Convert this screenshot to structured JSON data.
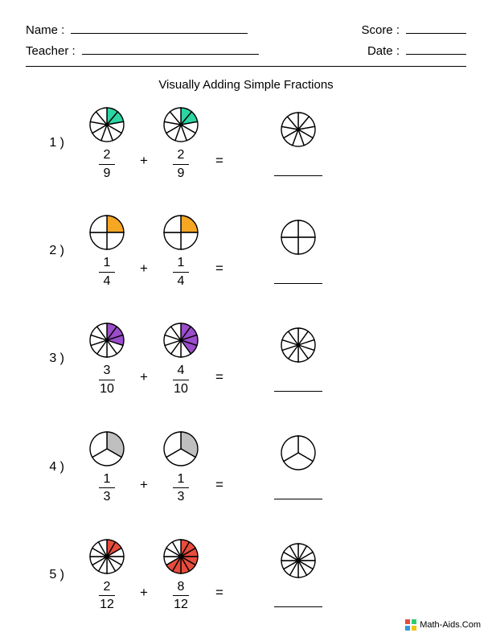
{
  "header": {
    "name_label": "Name :",
    "teacher_label": "Teacher :",
    "score_label": "Score :",
    "date_label": "Date :"
  },
  "title": "Visually Adding Simple Fractions",
  "operator": "+",
  "equals": "=",
  "pie_style": {
    "radius": 21,
    "stroke": "#000000",
    "stroke_width": 1.4,
    "empty_fill": "#ffffff"
  },
  "problems": [
    {
      "num": "1 )",
      "denom": 9,
      "left": {
        "numerator": "2",
        "denominator": "9",
        "filled": 2,
        "fill_color": "#2cd6a4"
      },
      "right": {
        "numerator": "2",
        "denominator": "9",
        "filled": 2,
        "fill_color": "#2cd6a4"
      }
    },
    {
      "num": "2 )",
      "denom": 4,
      "left": {
        "numerator": "1",
        "denominator": "4",
        "filled": 1,
        "fill_color": "#f5a623"
      },
      "right": {
        "numerator": "1",
        "denominator": "4",
        "filled": 1,
        "fill_color": "#f5a623"
      }
    },
    {
      "num": "3 )",
      "denom": 10,
      "left": {
        "numerator": "3",
        "denominator": "10",
        "filled": 3,
        "fill_color": "#9b4dca"
      },
      "right": {
        "numerator": "4",
        "denominator": "10",
        "filled": 4,
        "fill_color": "#9b4dca"
      }
    },
    {
      "num": "4 )",
      "denom": 3,
      "left": {
        "numerator": "1",
        "denominator": "3",
        "filled": 1,
        "fill_color": "#bfbfbf"
      },
      "right": {
        "numerator": "1",
        "denominator": "3",
        "filled": 1,
        "fill_color": "#bfbfbf"
      }
    },
    {
      "num": "5 )",
      "denom": 12,
      "left": {
        "numerator": "2",
        "denominator": "12",
        "filled": 2,
        "fill_color": "#e74c3c"
      },
      "right": {
        "numerator": "8",
        "denominator": "12",
        "filled": 8,
        "fill_color": "#e74c3c"
      }
    }
  ],
  "footer": {
    "text": "Math-Aids.Com",
    "icon_colors": [
      "#e74c3c",
      "#2ecc71",
      "#3498db",
      "#f1c40f"
    ]
  }
}
